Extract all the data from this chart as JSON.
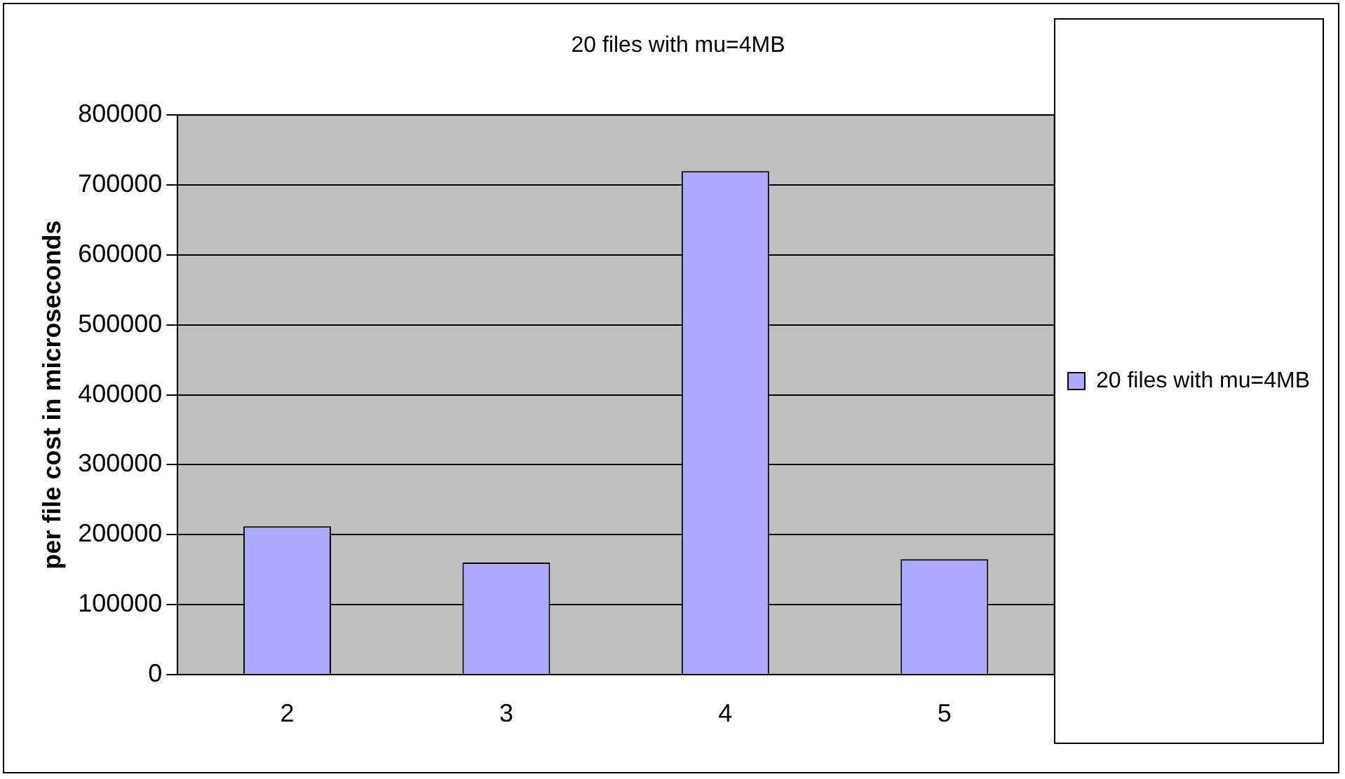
{
  "chart_data": {
    "type": "bar",
    "title": "20 files with mu=4MB",
    "ylabel": "per file cost in microseconds",
    "categories": [
      "2",
      "3",
      "4",
      "5"
    ],
    "series": [
      {
        "name": "20 files with mu=4MB",
        "color": "#aaaaff",
        "values": [
          212000,
          160000,
          720000,
          165000
        ]
      }
    ],
    "ylim": [
      0,
      800000
    ],
    "yticks": [
      0,
      100000,
      200000,
      300000,
      400000,
      500000,
      600000,
      700000,
      800000
    ],
    "grid": "y",
    "legend": "right"
  }
}
